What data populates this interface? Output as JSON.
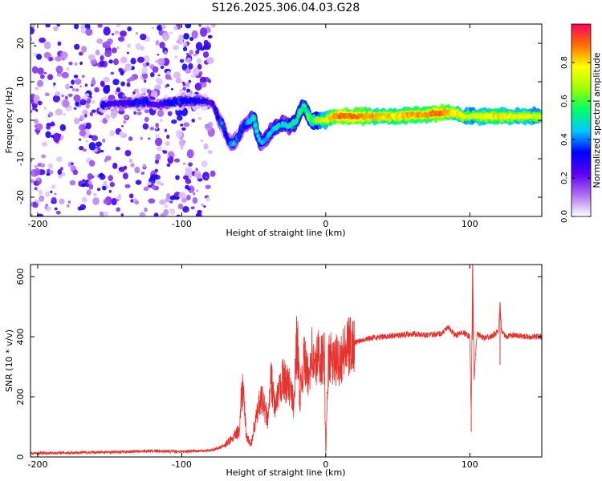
{
  "title": "S126.2025.306.04.03.G28",
  "chart_data": [
    {
      "type": "heatmap",
      "xlabel": "Height of straight line (km)",
      "ylabel": "Frequency (Hz)",
      "xlim": [
        -205,
        150
      ],
      "ylim": [
        -25,
        25
      ],
      "xticks": [
        -200,
        -100,
        0,
        100
      ],
      "yticks": [
        -20,
        -10,
        0,
        10,
        20
      ],
      "colorbar": {
        "label": "Normalized spectral amplitude",
        "range": [
          0,
          1
        ],
        "ticks": [
          0.0,
          0.2,
          0.4,
          0.6,
          0.8
        ],
        "tick_labels": [
          "0.0",
          "0.2",
          "0.4",
          "0.6",
          "0.8"
        ],
        "colors": [
          "#ffffff",
          "#b070f0",
          "#5a00f0",
          "#0000ff",
          "#00c8ff",
          "#00ff66",
          "#a0ff00",
          "#ffff00",
          "#ff7000",
          "#ff0060"
        ]
      },
      "ridge": {
        "x": [
          -155,
          -145,
          -135,
          -125,
          -120,
          -110,
          -100,
          -95,
          -90,
          -85,
          -80,
          -78,
          -75,
          -72,
          -70,
          -68,
          -66,
          -64,
          -62,
          -60,
          -58,
          -55,
          -52,
          -50,
          -48,
          -45,
          -42,
          -40,
          -38,
          -35,
          -30,
          -25,
          -20,
          -18,
          -15,
          -12,
          -10,
          -5,
          0,
          5,
          10,
          20,
          30,
          40,
          50,
          60,
          70,
          80,
          90,
          95,
          100,
          110,
          120,
          130,
          140,
          150
        ],
        "frequency_hz": [
          4,
          4.5,
          4.5,
          5,
          4,
          4.5,
          5,
          5,
          5,
          5,
          4.5,
          4,
          1,
          -1,
          -3,
          -5,
          -6,
          -6,
          -5,
          -4,
          -2,
          -1,
          0,
          1,
          -3,
          -6,
          -5,
          -4,
          -3,
          -2,
          -1,
          -1.5,
          0,
          2,
          4,
          1,
          0,
          0,
          0,
          1,
          1,
          1,
          1,
          1,
          1,
          1.5,
          1.5,
          2,
          2,
          1,
          1,
          1,
          1,
          1,
          1,
          1
        ],
        "amplitude": [
          0.3,
          0.25,
          0.3,
          0.35,
          0.2,
          0.3,
          0.35,
          0.3,
          0.3,
          0.3,
          0.25,
          0.25,
          0.3,
          0.4,
          0.3,
          0.3,
          0.4,
          0.45,
          0.4,
          0.35,
          0.35,
          0.4,
          0.45,
          0.5,
          0.55,
          0.45,
          0.4,
          0.45,
          0.45,
          0.5,
          0.45,
          0.5,
          0.55,
          0.55,
          0.55,
          0.6,
          0.6,
          0.65,
          0.75,
          0.85,
          0.9,
          0.9,
          0.85,
          0.8,
          0.8,
          0.85,
          0.85,
          0.9,
          0.8,
          0.75,
          0.7,
          0.75,
          0.8,
          0.75,
          0.75,
          0.7
        ]
      },
      "noise_region_x": [
        -205,
        -78
      ]
    },
    {
      "type": "line",
      "xlabel": "Height of straight line (km)",
      "ylabel": "SNR (10 * v/v)",
      "xlim": [
        -205,
        150
      ],
      "ylim": [
        0,
        640
      ],
      "xticks": [
        -200,
        -100,
        0,
        100
      ],
      "yticks": [
        0,
        200,
        400,
        600
      ],
      "series": [
        {
          "name": "SNR",
          "color": "#e8322e",
          "x": [
            -205,
            -180,
            -150,
            -120,
            -100,
            -80,
            -75,
            -70,
            -65,
            -60,
            -58,
            -55,
            -52,
            -50,
            -45,
            -40,
            -38,
            -35,
            -30,
            -25,
            -22,
            -20,
            -18,
            -15,
            -12,
            -10,
            -8,
            -5,
            -2,
            -1,
            0,
            2,
            5,
            10,
            15,
            20,
            25,
            30,
            40,
            50,
            60,
            70,
            80,
            85,
            90,
            95,
            100,
            101,
            102,
            103,
            105,
            110,
            115,
            120,
            121,
            122,
            125,
            130,
            140,
            150
          ],
          "y": [
            12,
            14,
            16,
            20,
            18,
            22,
            28,
            40,
            60,
            90,
            250,
            70,
            40,
            90,
            200,
            120,
            260,
            160,
            260,
            230,
            170,
            430,
            200,
            330,
            250,
            360,
            290,
            340,
            320,
            330,
            5,
            340,
            310,
            330,
            360,
            380,
            390,
            395,
            400,
            405,
            410,
            405,
            410,
            430,
            405,
            415,
            400,
            140,
            650,
            260,
            410,
            395,
            400,
            420,
            510,
            420,
            400,
            405,
            400,
            400
          ]
        }
      ]
    }
  ]
}
